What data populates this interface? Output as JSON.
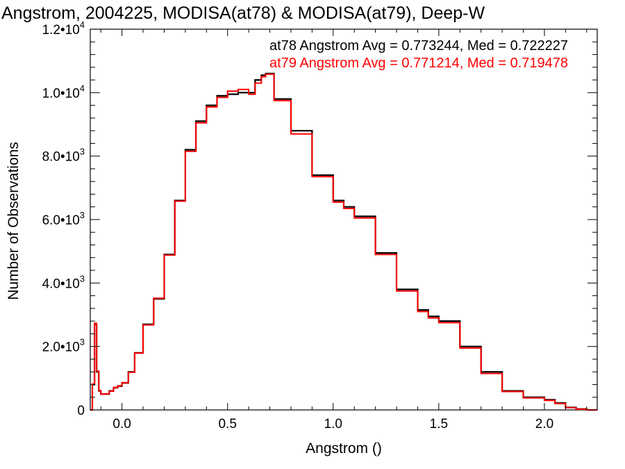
{
  "chart_data": {
    "type": "line",
    "title": "Angstrom, 2004225, MODISA(at78) & MODISA(at79), Deep-W",
    "xlabel": "Angstrom ()",
    "ylabel": "Number of Observations",
    "xlim": [
      -0.15,
      2.25
    ],
    "ylim": [
      0,
      12000
    ],
    "grid": false,
    "x_ticks": [
      {
        "value": 0.0,
        "label": "0.0"
      },
      {
        "value": 0.5,
        "label": "0.5"
      },
      {
        "value": 1.0,
        "label": "1.0"
      },
      {
        "value": 1.5,
        "label": "1.5"
      },
      {
        "value": 2.0,
        "label": "2.0"
      }
    ],
    "y_ticks": [
      {
        "value": 0,
        "mantissa": "0",
        "exp": ""
      },
      {
        "value": 2000,
        "mantissa": "2.0•10",
        "exp": "3"
      },
      {
        "value": 4000,
        "mantissa": "4.0•10",
        "exp": "3"
      },
      {
        "value": 6000,
        "mantissa": "6.0•10",
        "exp": "3"
      },
      {
        "value": 8000,
        "mantissa": "8.0•10",
        "exp": "3"
      },
      {
        "value": 10000,
        "mantissa": "1.0•10",
        "exp": "4"
      },
      {
        "value": 12000,
        "mantissa": "1.2•10",
        "exp": "4"
      }
    ],
    "annotations": [
      {
        "text": "at78 Angstrom Avg = 0.773244, Med = 0.722227",
        "color": "#000000"
      },
      {
        "text": "at79 Angstrom Avg = 0.771214, Med = 0.719478",
        "color": "#ff0000"
      }
    ],
    "series": [
      {
        "name": "at78",
        "color": "#000000",
        "x": [
          -0.15,
          -0.14,
          -0.13,
          -0.12,
          -0.11,
          -0.1,
          -0.08,
          -0.06,
          -0.04,
          -0.02,
          0.0,
          0.03,
          0.06,
          0.1,
          0.15,
          0.2,
          0.25,
          0.3,
          0.35,
          0.4,
          0.45,
          0.5,
          0.55,
          0.6,
          0.63,
          0.66,
          0.68,
          0.72,
          0.8,
          0.9,
          1.0,
          1.05,
          1.1,
          1.2,
          1.3,
          1.4,
          1.45,
          1.5,
          1.6,
          1.7,
          1.8,
          1.9,
          2.0,
          2.05,
          2.1,
          2.15,
          2.2,
          2.25
        ],
        "y": [
          0,
          800,
          2700,
          1200,
          600,
          500,
          500,
          600,
          700,
          750,
          850,
          1200,
          1800,
          2700,
          3500,
          4900,
          6600,
          8200,
          9100,
          9600,
          9900,
          9950,
          10000,
          10000,
          10400,
          10550,
          10600,
          9800,
          8800,
          7400,
          6600,
          6400,
          6100,
          4950,
          3800,
          3150,
          2950,
          2800,
          2000,
          1200,
          600,
          400,
          320,
          220,
          80,
          30,
          0,
          0
        ]
      },
      {
        "name": "at79",
        "color": "#ff0000",
        "x": [
          -0.15,
          -0.14,
          -0.13,
          -0.12,
          -0.11,
          -0.1,
          -0.08,
          -0.06,
          -0.04,
          -0.02,
          0.0,
          0.03,
          0.06,
          0.1,
          0.15,
          0.2,
          0.25,
          0.3,
          0.35,
          0.4,
          0.45,
          0.5,
          0.55,
          0.6,
          0.63,
          0.66,
          0.68,
          0.72,
          0.8,
          0.9,
          1.0,
          1.05,
          1.1,
          1.2,
          1.3,
          1.4,
          1.45,
          1.5,
          1.6,
          1.7,
          1.8,
          1.9,
          2.0,
          2.05,
          2.1,
          2.15,
          2.2,
          2.25
        ],
        "y": [
          0,
          820,
          2730,
          1220,
          610,
          500,
          510,
          590,
          710,
          760,
          860,
          1190,
          1790,
          2680,
          3520,
          4880,
          6580,
          8150,
          9050,
          9550,
          9850,
          10050,
          10100,
          9950,
          10300,
          10500,
          10580,
          9750,
          8700,
          7350,
          6550,
          6350,
          6050,
          4900,
          3750,
          3100,
          2900,
          2750,
          1950,
          1150,
          580,
          380,
          300,
          200,
          70,
          25,
          0,
          0
        ]
      }
    ]
  }
}
